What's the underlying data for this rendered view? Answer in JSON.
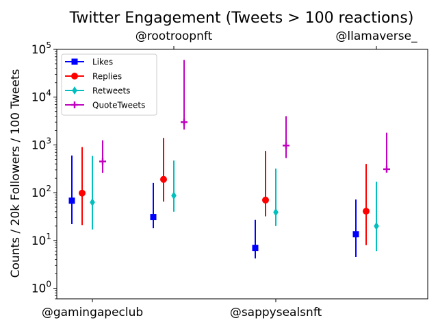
{
  "chart_data": {
    "type": "scatter",
    "title": "Twitter Engagement (Tweets > 100 reactions)",
    "ylabel": "Counts / 20k Followers / 100 Tweets",
    "xlabel": "",
    "yscale": "log",
    "ylim": [
      0.6,
      100000
    ],
    "categories_bottom": [
      "@gamingapeclub",
      "@sappysealsnft"
    ],
    "categories_top": [
      "@rootroopnft",
      "@llamaverse_"
    ],
    "categories": [
      "@gamingapeclub",
      "@rootroopnft",
      "@sappysealsnft",
      "@llamaverse_"
    ],
    "yticks": [
      {
        "value": 1,
        "base": "10",
        "exp": "0"
      },
      {
        "value": 10,
        "base": "10",
        "exp": "1"
      },
      {
        "value": 100,
        "base": "10",
        "exp": "2"
      },
      {
        "value": 1000,
        "base": "10",
        "exp": "3"
      },
      {
        "value": 10000,
        "base": "10",
        "exp": "4"
      },
      {
        "value": 100000,
        "base": "10",
        "exp": "5"
      }
    ],
    "legend_position": "top-left",
    "grid": false,
    "series": [
      {
        "name": "Likes",
        "color": "#0000ff",
        "marker": "square",
        "values": [
          68,
          31,
          7,
          13.5
        ],
        "low": [
          22,
          18,
          4.2,
          4.5
        ],
        "high": [
          600,
          160,
          27,
          72
        ]
      },
      {
        "name": "Replies",
        "color": "#ff0000",
        "marker": "circle",
        "values": [
          98,
          190,
          70,
          41
        ],
        "low": [
          21,
          65,
          32,
          8
        ],
        "high": [
          900,
          1400,
          750,
          400
        ]
      },
      {
        "name": "Retweets",
        "color": "#00bfbf",
        "marker": "thin-diamond",
        "values": [
          63,
          87,
          39,
          20
        ],
        "low": [
          17,
          40,
          20,
          6
        ],
        "high": [
          590,
          470,
          320,
          170
        ]
      },
      {
        "name": "QuoteTweets",
        "color": "#bf00bf",
        "marker": "plus",
        "values": [
          450,
          3000,
          970,
          310
        ],
        "low": [
          260,
          2100,
          530,
          270
        ],
        "high": [
          1250,
          60000,
          4000,
          1800
        ]
      }
    ]
  }
}
